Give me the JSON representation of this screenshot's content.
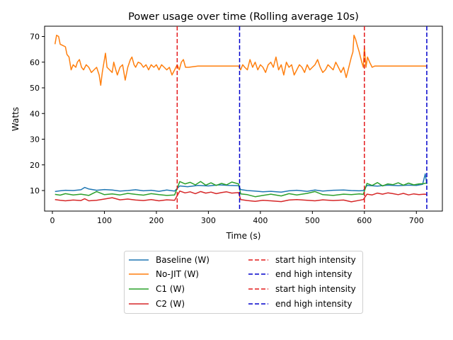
{
  "chart_data": {
    "type": "line",
    "title": "Power usage over time (Rolling average 10s)",
    "xlabel": "Time (s)",
    "ylabel": "Watts",
    "xlim": [
      -15,
      750
    ],
    "ylim": [
      2,
      74
    ],
    "xticks": [
      0,
      100,
      200,
      300,
      400,
      500,
      600,
      700
    ],
    "yticks": [
      10,
      20,
      30,
      40,
      50,
      60,
      70
    ],
    "series": [
      {
        "name": "Baseline (W)",
        "color": "#1f77b4",
        "points": [
          [
            5,
            9.6
          ],
          [
            15,
            9.9
          ],
          [
            25,
            10.1
          ],
          [
            40,
            10.0
          ],
          [
            55,
            10.3
          ],
          [
            62,
            11.2
          ],
          [
            70,
            10.6
          ],
          [
            85,
            10.1
          ],
          [
            100,
            10.4
          ],
          [
            115,
            10.2
          ],
          [
            130,
            9.8
          ],
          [
            145,
            10.0
          ],
          [
            160,
            10.3
          ],
          [
            175,
            9.9
          ],
          [
            190,
            10.1
          ],
          [
            205,
            9.7
          ],
          [
            220,
            10.2
          ],
          [
            235,
            9.8
          ],
          [
            245,
            11.8
          ],
          [
            260,
            11.5
          ],
          [
            280,
            12.0
          ],
          [
            300,
            11.8
          ],
          [
            320,
            12.2
          ],
          [
            340,
            12.0
          ],
          [
            358,
            11.9
          ],
          [
            362,
            10.4
          ],
          [
            375,
            10.0
          ],
          [
            390,
            9.8
          ],
          [
            405,
            9.5
          ],
          [
            420,
            9.7
          ],
          [
            440,
            9.4
          ],
          [
            455,
            9.9
          ],
          [
            470,
            10.1
          ],
          [
            490,
            9.7
          ],
          [
            505,
            10.2
          ],
          [
            520,
            9.8
          ],
          [
            540,
            10.1
          ],
          [
            560,
            10.2
          ],
          [
            575,
            10.0
          ],
          [
            590,
            9.9
          ],
          [
            598,
            10.0
          ],
          [
            605,
            12.0
          ],
          [
            625,
            11.7
          ],
          [
            645,
            12.1
          ],
          [
            665,
            11.9
          ],
          [
            685,
            12.1
          ],
          [
            700,
            12.0
          ],
          [
            712,
            12.4
          ],
          [
            717,
            16.5
          ],
          [
            720,
            12.5
          ]
        ]
      },
      {
        "name": "No-JIT (W)",
        "color": "#ff7f0e",
        "points": [
          [
            5,
            67
          ],
          [
            8,
            70.5
          ],
          [
            12,
            70
          ],
          [
            15,
            67
          ],
          [
            20,
            66.5
          ],
          [
            25,
            66
          ],
          [
            28,
            63
          ],
          [
            32,
            62
          ],
          [
            36,
            57
          ],
          [
            40,
            59
          ],
          [
            45,
            58
          ],
          [
            48,
            60
          ],
          [
            52,
            61
          ],
          [
            56,
            58
          ],
          [
            60,
            57
          ],
          [
            65,
            59
          ],
          [
            70,
            58
          ],
          [
            75,
            56
          ],
          [
            80,
            57
          ],
          [
            85,
            58
          ],
          [
            90,
            55
          ],
          [
            93,
            51
          ],
          [
            96,
            56
          ],
          [
            100,
            61
          ],
          [
            102,
            63.5
          ],
          [
            105,
            58
          ],
          [
            110,
            57
          ],
          [
            115,
            56
          ],
          [
            118,
            60
          ],
          [
            122,
            57
          ],
          [
            125,
            55
          ],
          [
            130,
            58
          ],
          [
            135,
            59
          ],
          [
            140,
            53
          ],
          [
            145,
            58
          ],
          [
            150,
            61
          ],
          [
            153,
            62
          ],
          [
            157,
            59
          ],
          [
            160,
            58
          ],
          [
            165,
            60
          ],
          [
            170,
            59.5
          ],
          [
            175,
            58
          ],
          [
            180,
            59
          ],
          [
            185,
            57
          ],
          [
            190,
            59
          ],
          [
            195,
            58
          ],
          [
            200,
            59
          ],
          [
            205,
            57
          ],
          [
            210,
            59
          ],
          [
            215,
            58
          ],
          [
            220,
            57
          ],
          [
            225,
            58
          ],
          [
            230,
            55
          ],
          [
            235,
            57
          ],
          [
            240,
            59
          ],
          [
            244,
            57
          ],
          [
            248,
            60
          ],
          [
            252,
            61
          ],
          [
            256,
            58
          ],
          [
            262,
            58
          ],
          [
            280,
            58.5
          ],
          [
            300,
            58.5
          ],
          [
            320,
            58.5
          ],
          [
            340,
            58.5
          ],
          [
            358,
            58.5
          ],
          [
            362,
            57
          ],
          [
            366,
            59
          ],
          [
            370,
            58
          ],
          [
            375,
            57
          ],
          [
            380,
            61
          ],
          [
            385,
            58
          ],
          [
            390,
            60
          ],
          [
            395,
            57
          ],
          [
            400,
            59
          ],
          [
            405,
            58
          ],
          [
            410,
            56
          ],
          [
            415,
            59
          ],
          [
            420,
            60
          ],
          [
            425,
            58
          ],
          [
            430,
            62
          ],
          [
            435,
            57
          ],
          [
            440,
            59
          ],
          [
            445,
            55
          ],
          [
            450,
            60
          ],
          [
            455,
            58
          ],
          [
            460,
            59
          ],
          [
            465,
            55
          ],
          [
            470,
            57
          ],
          [
            475,
            59
          ],
          [
            480,
            58
          ],
          [
            485,
            56
          ],
          [
            490,
            59
          ],
          [
            495,
            57
          ],
          [
            500,
            58
          ],
          [
            505,
            59
          ],
          [
            510,
            61
          ],
          [
            515,
            58
          ],
          [
            520,
            56
          ],
          [
            525,
            57
          ],
          [
            530,
            59
          ],
          [
            535,
            58
          ],
          [
            540,
            57
          ],
          [
            545,
            60
          ],
          [
            550,
            58
          ],
          [
            555,
            56
          ],
          [
            560,
            58
          ],
          [
            565,
            54
          ],
          [
            570,
            58
          ],
          [
            575,
            62
          ],
          [
            578,
            64
          ],
          [
            580,
            70.5
          ],
          [
            583,
            69
          ],
          [
            587,
            66
          ],
          [
            590,
            64
          ],
          [
            595,
            60
          ],
          [
            598,
            58
          ],
          [
            600,
            66
          ],
          [
            603,
            58
          ],
          [
            606,
            62
          ],
          [
            610,
            60
          ],
          [
            615,
            58
          ],
          [
            620,
            58.5
          ],
          [
            640,
            58.5
          ],
          [
            660,
            58.5
          ],
          [
            680,
            58.5
          ],
          [
            700,
            58.5
          ],
          [
            720,
            58.5
          ]
        ]
      },
      {
        "name": "C1 (W)",
        "color": "#2ca02c",
        "points": [
          [
            5,
            8.5
          ],
          [
            15,
            8.2
          ],
          [
            25,
            8.8
          ],
          [
            40,
            8.3
          ],
          [
            55,
            8.6
          ],
          [
            70,
            8.1
          ],
          [
            85,
            9.6
          ],
          [
            100,
            8.4
          ],
          [
            115,
            8.7
          ],
          [
            130,
            8.3
          ],
          [
            145,
            8.9
          ],
          [
            160,
            8.5
          ],
          [
            175,
            8.2
          ],
          [
            190,
            8.8
          ],
          [
            205,
            8.4
          ],
          [
            220,
            8.1
          ],
          [
            235,
            8.3
          ],
          [
            245,
            13.5
          ],
          [
            255,
            12.6
          ],
          [
            265,
            13.2
          ],
          [
            275,
            12.2
          ],
          [
            285,
            13.5
          ],
          [
            295,
            12.1
          ],
          [
            305,
            13.0
          ],
          [
            315,
            12.0
          ],
          [
            325,
            12.8
          ],
          [
            335,
            12.2
          ],
          [
            345,
            13.3
          ],
          [
            358,
            12.6
          ],
          [
            362,
            8.7
          ],
          [
            375,
            8.4
          ],
          [
            390,
            7.6
          ],
          [
            405,
            8.1
          ],
          [
            420,
            8.6
          ],
          [
            440,
            7.9
          ],
          [
            455,
            8.8
          ],
          [
            470,
            8.3
          ],
          [
            490,
            8.9
          ],
          [
            505,
            9.6
          ],
          [
            520,
            8.4
          ],
          [
            540,
            8.1
          ],
          [
            560,
            8.6
          ],
          [
            575,
            8.4
          ],
          [
            590,
            8.7
          ],
          [
            598,
            8.5
          ],
          [
            605,
            12.8
          ],
          [
            615,
            12.0
          ],
          [
            625,
            13.1
          ],
          [
            635,
            11.8
          ],
          [
            645,
            12.6
          ],
          [
            655,
            12.3
          ],
          [
            665,
            13.0
          ],
          [
            675,
            12.1
          ],
          [
            685,
            12.9
          ],
          [
            695,
            12.2
          ],
          [
            705,
            12.6
          ],
          [
            715,
            12.7
          ],
          [
            720,
            13.0
          ]
        ]
      },
      {
        "name": "C2 (W)",
        "color": "#d62728",
        "points": [
          [
            5,
            6.5
          ],
          [
            15,
            6.2
          ],
          [
            25,
            6.0
          ],
          [
            40,
            6.3
          ],
          [
            55,
            6.1
          ],
          [
            62,
            6.8
          ],
          [
            70,
            6.0
          ],
          [
            85,
            6.2
          ],
          [
            100,
            6.7
          ],
          [
            115,
            7.2
          ],
          [
            130,
            6.4
          ],
          [
            145,
            6.7
          ],
          [
            160,
            6.3
          ],
          [
            175,
            6.1
          ],
          [
            190,
            6.5
          ],
          [
            205,
            6.0
          ],
          [
            220,
            6.4
          ],
          [
            235,
            6.2
          ],
          [
            245,
            9.8
          ],
          [
            255,
            9.1
          ],
          [
            265,
            9.5
          ],
          [
            275,
            8.8
          ],
          [
            285,
            9.6
          ],
          [
            295,
            9.0
          ],
          [
            305,
            9.4
          ],
          [
            315,
            8.8
          ],
          [
            325,
            9.2
          ],
          [
            335,
            9.5
          ],
          [
            345,
            9.0
          ],
          [
            358,
            9.2
          ],
          [
            362,
            6.5
          ],
          [
            375,
            6.1
          ],
          [
            390,
            5.8
          ],
          [
            405,
            6.2
          ],
          [
            420,
            6.0
          ],
          [
            440,
            5.7
          ],
          [
            455,
            6.3
          ],
          [
            470,
            6.5
          ],
          [
            490,
            6.2
          ],
          [
            505,
            6.0
          ],
          [
            520,
            6.4
          ],
          [
            540,
            6.1
          ],
          [
            560,
            6.3
          ],
          [
            575,
            5.6
          ],
          [
            590,
            6.2
          ],
          [
            598,
            6.5
          ],
          [
            605,
            8.6
          ],
          [
            615,
            8.3
          ],
          [
            625,
            9.0
          ],
          [
            635,
            8.6
          ],
          [
            645,
            9.1
          ],
          [
            655,
            8.8
          ],
          [
            665,
            8.4
          ],
          [
            675,
            8.9
          ],
          [
            685,
            8.3
          ],
          [
            695,
            8.7
          ],
          [
            705,
            8.4
          ],
          [
            715,
            8.6
          ],
          [
            720,
            8.5
          ]
        ]
      }
    ],
    "vlines": [
      {
        "name": "start high intensity",
        "x": 240,
        "color": "#e41a1c"
      },
      {
        "name": "end high intensity",
        "x": 360,
        "color": "#0000cc"
      },
      {
        "name": "start high intensity",
        "x": 600,
        "color": "#e41a1c"
      },
      {
        "name": "end high intensity",
        "x": 720,
        "color": "#0000cc"
      }
    ],
    "legend": {
      "placement": "bottom-center",
      "columns": [
        [
          "Baseline (W)",
          "No-JIT (W)",
          "C1 (W)",
          "C2 (W)"
        ],
        [
          "start high intensity",
          "end high intensity",
          "start high intensity",
          "end high intensity"
        ]
      ]
    },
    "grid": false
  }
}
